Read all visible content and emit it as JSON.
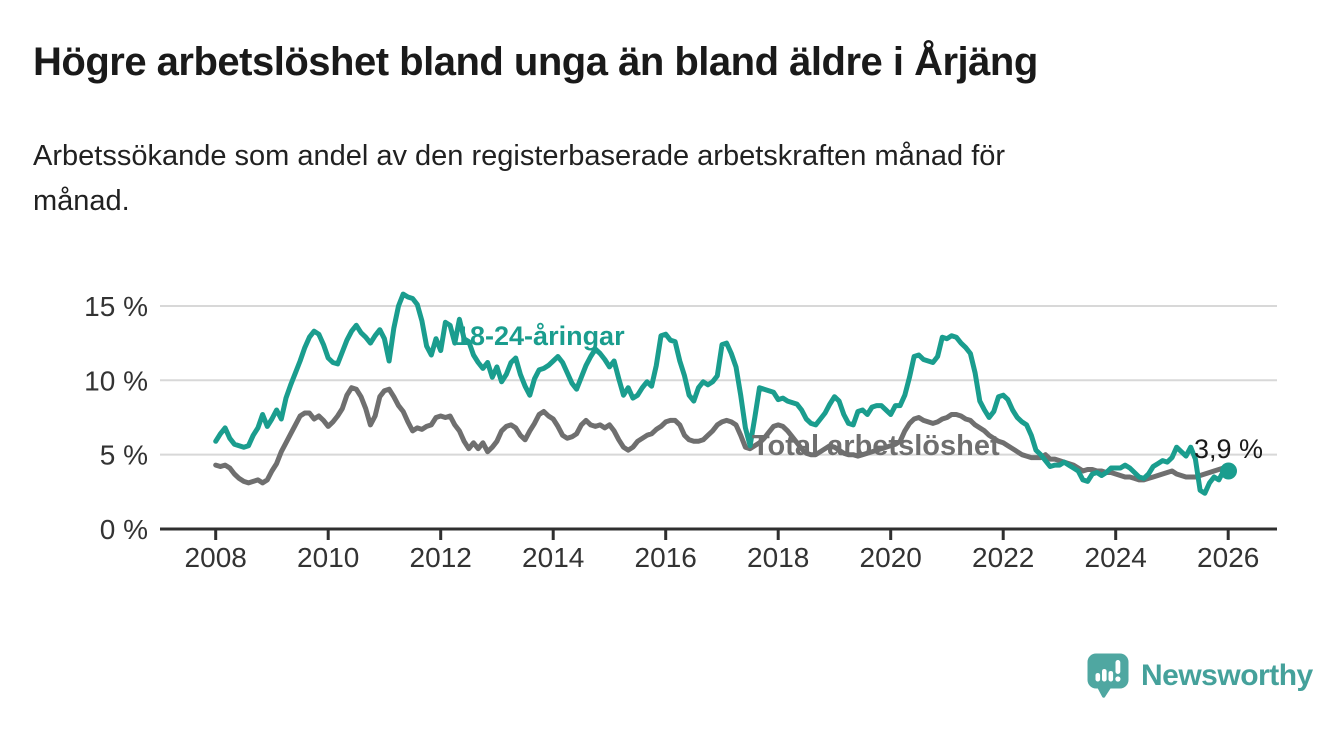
{
  "header": {
    "title": "Högre arbetslöshet bland unga än bland äldre i Årjäng",
    "subtitle": "Arbetssökande som andel av den registerbaserade arbetskraften månad för\nmånad."
  },
  "chart_data": {
    "type": "line",
    "title": "Högre arbetslöshet bland unga än bland äldre i Årjäng",
    "x_unit": "month",
    "x_start": "2008-01",
    "x_end": "2025-12",
    "grid": true,
    "x_axis": {
      "ticks": [
        2008,
        2010,
        2012,
        2014,
        2016,
        2018,
        2020,
        2022,
        2024,
        2026
      ]
    },
    "y_axis": {
      "values": [
        0,
        5,
        10,
        15
      ],
      "ticks": [
        "0 %",
        "5 %",
        "10 %",
        "15 %"
      ],
      "ylim": [
        0,
        16.5
      ]
    },
    "series": [
      {
        "name": "Total arbetslöshet",
        "color": "#6F6F6F",
        "label": {
          "text": "Total arbetslöshet",
          "x": 752,
          "y": 185
        },
        "values": [
          4.3,
          4.2,
          4.3,
          4.1,
          3.7,
          3.4,
          3.2,
          3.1,
          3.2,
          3.3,
          3.1,
          3.3,
          3.9,
          4.4,
          5.2,
          5.8,
          6.4,
          7.0,
          7.6,
          7.8,
          7.8,
          7.4,
          7.6,
          7.3,
          6.9,
          7.2,
          7.6,
          8.1,
          9.0,
          9.5,
          9.4,
          8.9,
          8.1,
          7.0,
          7.6,
          8.9,
          9.3,
          9.4,
          8.9,
          8.3,
          7.9,
          7.2,
          6.6,
          6.8,
          6.7,
          6.9,
          7.0,
          7.5,
          7.6,
          7.5,
          7.6,
          7.0,
          6.6,
          5.9,
          5.4,
          5.8,
          5.4,
          5.8,
          5.2,
          5.5,
          5.9,
          6.6,
          6.9,
          7.0,
          6.8,
          6.3,
          6.0,
          6.6,
          7.1,
          7.7,
          7.9,
          7.6,
          7.4,
          6.9,
          6.3,
          6.1,
          6.2,
          6.4,
          7.0,
          7.3,
          7.0,
          6.9,
          7.0,
          6.8,
          7.0,
          6.6,
          6.0,
          5.5,
          5.3,
          5.5,
          5.9,
          6.1,
          6.3,
          6.4,
          6.7,
          6.9,
          7.2,
          7.3,
          7.3,
          7.0,
          6.3,
          6.0,
          5.9,
          5.9,
          6.0,
          6.3,
          6.6,
          7.0,
          7.2,
          7.3,
          7.2,
          7.0,
          6.3,
          5.5,
          5.4,
          5.6,
          5.8,
          6.1,
          6.5,
          6.9,
          7.0,
          6.9,
          6.6,
          6.2,
          5.8,
          5.4,
          5.1,
          5.0,
          5.0,
          5.2,
          5.4,
          5.6,
          5.5,
          5.3,
          5.1,
          5.0,
          5.0,
          4.9,
          5.0,
          5.1,
          5.2,
          5.3,
          5.4,
          5.5,
          5.6,
          5.7,
          5.9,
          6.6,
          7.1,
          7.4,
          7.5,
          7.3,
          7.2,
          7.1,
          7.2,
          7.4,
          7.5,
          7.7,
          7.7,
          7.6,
          7.4,
          7.3,
          7.0,
          6.8,
          6.6,
          6.3,
          6.1,
          5.9,
          5.8,
          5.6,
          5.4,
          5.2,
          5.0,
          4.9,
          4.8,
          4.8,
          4.8,
          5.0,
          4.7,
          4.7,
          4.6,
          4.5,
          4.4,
          4.3,
          4.1,
          3.9,
          4.0,
          4.0,
          3.9,
          3.9,
          3.8,
          3.8,
          3.7,
          3.6,
          3.5,
          3.5,
          3.4,
          3.3,
          3.3,
          3.4,
          3.5,
          3.6,
          3.7,
          3.8,
          3.9,
          3.7,
          3.6,
          3.5,
          3.5,
          3.5,
          3.6,
          3.7,
          3.8,
          3.9,
          4.0,
          4.1
        ]
      },
      {
        "name": "18-24-åringar",
        "color": "#1A9D8E",
        "label": {
          "text": "18-24-åringar",
          "x": 455,
          "y": 75
        },
        "values": [
          5.9,
          6.4,
          6.8,
          6.1,
          5.7,
          5.6,
          5.5,
          5.6,
          6.3,
          6.8,
          7.7,
          6.9,
          7.4,
          8.0,
          7.4,
          8.8,
          9.7,
          10.5,
          11.3,
          12.2,
          12.9,
          13.3,
          13.1,
          12.4,
          11.5,
          11.2,
          11.1,
          11.9,
          12.7,
          13.3,
          13.7,
          13.2,
          12.9,
          12.5,
          13.0,
          13.4,
          12.8,
          11.3,
          13.5,
          15.0,
          15.8,
          15.6,
          15.5,
          15.1,
          14.0,
          12.3,
          11.7,
          12.8,
          12.0,
          13.9,
          13.7,
          12.5,
          14.1,
          12.8,
          12.6,
          11.7,
          11.2,
          10.8,
          11.2,
          10.2,
          10.9,
          9.9,
          10.4,
          11.2,
          11.5,
          10.4,
          9.6,
          9.0,
          10.1,
          10.7,
          10.8,
          11.0,
          11.3,
          11.6,
          11.2,
          10.5,
          9.8,
          9.4,
          10.2,
          11.0,
          11.6,
          12.1,
          11.8,
          11.4,
          10.9,
          11.3,
          10.1,
          9.0,
          9.5,
          8.8,
          9.0,
          9.5,
          9.9,
          9.6,
          11.0,
          13.0,
          13.1,
          12.7,
          12.6,
          11.3,
          10.3,
          9.0,
          8.6,
          9.5,
          9.9,
          9.7,
          9.9,
          10.3,
          12.4,
          12.5,
          11.8,
          10.9,
          9.0,
          6.8,
          5.6,
          7.5,
          9.5,
          9.4,
          9.3,
          9.2,
          8.7,
          8.8,
          8.6,
          8.5,
          8.4,
          8.0,
          7.4,
          7.1,
          7.0,
          7.4,
          7.8,
          8.4,
          8.9,
          8.6,
          7.7,
          7.1,
          7.0,
          7.9,
          8.0,
          7.7,
          8.2,
          8.3,
          8.3,
          8.0,
          7.7,
          8.3,
          8.3,
          9.0,
          10.2,
          11.6,
          11.7,
          11.4,
          11.3,
          11.2,
          11.6,
          12.9,
          12.8,
          13.0,
          12.9,
          12.5,
          12.2,
          11.8,
          10.5,
          8.6,
          8.0,
          7.5,
          7.9,
          8.9,
          9.0,
          8.7,
          8.0,
          7.5,
          7.2,
          7.0,
          6.3,
          5.3,
          5.0,
          4.6,
          4.2,
          4.3,
          4.3,
          4.5,
          4.3,
          4.1,
          3.9,
          3.3,
          3.2,
          3.7,
          3.8,
          3.6,
          3.8,
          4.1,
          4.1,
          4.1,
          4.3,
          4.1,
          3.8,
          3.5,
          3.4,
          3.7,
          4.2,
          4.4,
          4.6,
          4.5,
          4.8,
          5.5,
          5.2,
          4.9,
          5.5,
          4.7,
          2.6,
          2.4,
          3.1,
          3.5,
          3.3,
          3.9
        ]
      }
    ],
    "end_annotation": {
      "label": "3,9 %",
      "series": "18-24-åringar",
      "value": 3.9,
      "dot": true
    },
    "legend_position": "inline-labels"
  },
  "footer": {
    "logo_text": "Newsworthy",
    "logo_icon": "newsworthy-bar-chart-bubble-icon"
  },
  "colors": {
    "young_series": "#1A9D8E",
    "total_series": "#6F6F6F",
    "title_text": "#1a1a1a",
    "axis_labels": "#333333",
    "axis_line": "#2F2F2F",
    "gridline": "#D8D8D8",
    "logo_icon": "#4FA7A1",
    "logo_text": "#45A19B"
  }
}
